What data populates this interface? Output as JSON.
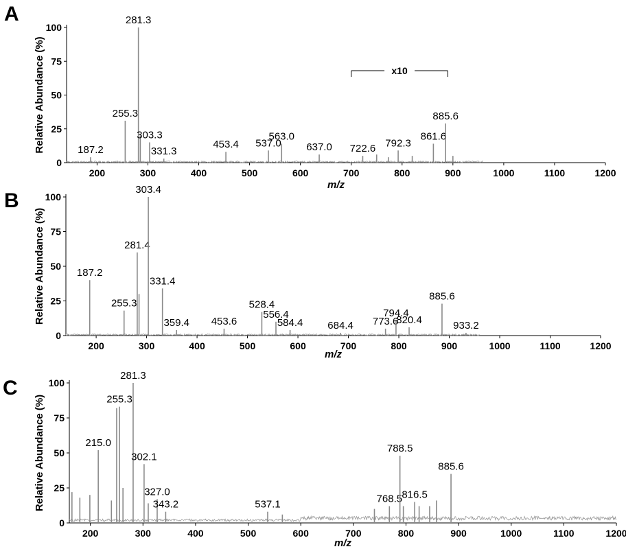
{
  "chart_data": [
    {
      "type": "line",
      "panel": "A",
      "ylabel": "Relative Abundance  (%)",
      "xlabel": "m/z",
      "xlim": [
        140,
        1200
      ],
      "ylim": [
        0,
        100
      ],
      "xticks": [
        200,
        300,
        400,
        500,
        600,
        700,
        800,
        900,
        1000,
        1100,
        1200
      ],
      "yticks": [
        0,
        25,
        50,
        75,
        100
      ],
      "annotation": {
        "text": "x10",
        "x_range": [
          700,
          890
        ],
        "y": 68
      },
      "baseline_end": 960,
      "noise": 1.2,
      "peaks": [
        {
          "x": 187.2,
          "y": 4,
          "label": "187.2"
        },
        {
          "x": 255.3,
          "y": 31,
          "label": "255.3"
        },
        {
          "x": 281.3,
          "y": 100,
          "label": "281.3"
        },
        {
          "x": 285,
          "y": 20,
          "label": ""
        },
        {
          "x": 303.3,
          "y": 15,
          "label": "303.3"
        },
        {
          "x": 331.3,
          "y": 3,
          "label": "331.3"
        },
        {
          "x": 453.4,
          "y": 8,
          "label": "453.4"
        },
        {
          "x": 537.0,
          "y": 9,
          "label": "537.0"
        },
        {
          "x": 563.0,
          "y": 14,
          "label": "563.0"
        },
        {
          "x": 637.0,
          "y": 6,
          "label": "637.0"
        },
        {
          "x": 722.6,
          "y": 5,
          "label": "722.6"
        },
        {
          "x": 750,
          "y": 6,
          "label": ""
        },
        {
          "x": 773,
          "y": 4,
          "label": ""
        },
        {
          "x": 792.3,
          "y": 9,
          "label": "792.3"
        },
        {
          "x": 820,
          "y": 5,
          "label": ""
        },
        {
          "x": 861.6,
          "y": 14,
          "label": "861.6"
        },
        {
          "x": 885.6,
          "y": 29,
          "label": "885.6"
        },
        {
          "x": 900,
          "y": 5,
          "label": ""
        }
      ]
    },
    {
      "type": "line",
      "panel": "B",
      "ylabel": "Relative Abundance  (%)",
      "xlabel": "m/z",
      "xlim": [
        140,
        1200
      ],
      "ylim": [
        0,
        100
      ],
      "xticks": [
        200,
        300,
        400,
        500,
        600,
        700,
        800,
        900,
        1000,
        1100,
        1200
      ],
      "yticks": [
        0,
        25,
        50,
        75,
        100
      ],
      "baseline_end": 960,
      "noise": 1.2,
      "peaks": [
        {
          "x": 187.2,
          "y": 40,
          "label": "187.2"
        },
        {
          "x": 255.3,
          "y": 18,
          "label": "255.3"
        },
        {
          "x": 281.4,
          "y": 60,
          "label": "281.4"
        },
        {
          "x": 285,
          "y": 30,
          "label": ""
        },
        {
          "x": 303.4,
          "y": 100,
          "label": "303.4"
        },
        {
          "x": 331.4,
          "y": 34,
          "label": "331.4"
        },
        {
          "x": 359.4,
          "y": 4,
          "label": "359.4"
        },
        {
          "x": 453.6,
          "y": 5,
          "label": "453.6"
        },
        {
          "x": 528.4,
          "y": 17,
          "label": "528.4"
        },
        {
          "x": 556.4,
          "y": 10,
          "label": "556.4"
        },
        {
          "x": 584.4,
          "y": 4,
          "label": "584.4"
        },
        {
          "x": 684.4,
          "y": 2,
          "label": "684.4"
        },
        {
          "x": 773.6,
          "y": 5,
          "label": "773.6"
        },
        {
          "x": 794.4,
          "y": 11,
          "label": "794.4"
        },
        {
          "x": 820.4,
          "y": 6,
          "label": "820.4"
        },
        {
          "x": 885.6,
          "y": 23,
          "label": "885.6"
        },
        {
          "x": 933.2,
          "y": 2,
          "label": "933.2"
        }
      ]
    },
    {
      "type": "line",
      "panel": "C",
      "ylabel": "Relative Abundance  (%)",
      "xlabel": "m/z",
      "xlim": [
        160,
        1200
      ],
      "ylim": [
        0,
        100
      ],
      "xticks": [
        200,
        300,
        400,
        500,
        600,
        700,
        800,
        900,
        1000,
        1100,
        1200
      ],
      "yticks": [
        0,
        25,
        50,
        75,
        100
      ],
      "baseline_end": 1200,
      "noise": 4,
      "peaks": [
        {
          "x": 165,
          "y": 22,
          "label": ""
        },
        {
          "x": 180,
          "y": 18,
          "label": ""
        },
        {
          "x": 199,
          "y": 20,
          "label": ""
        },
        {
          "x": 215.0,
          "y": 52,
          "label": "215.0"
        },
        {
          "x": 240,
          "y": 16,
          "label": ""
        },
        {
          "x": 250,
          "y": 82,
          "label": ""
        },
        {
          "x": 255.3,
          "y": 83,
          "label": "255.3"
        },
        {
          "x": 262,
          "y": 25,
          "label": ""
        },
        {
          "x": 281.3,
          "y": 100,
          "label": "281.3"
        },
        {
          "x": 302.1,
          "y": 42,
          "label": "302.1"
        },
        {
          "x": 310,
          "y": 14,
          "label": ""
        },
        {
          "x": 327.0,
          "y": 17,
          "label": "327.0"
        },
        {
          "x": 343.2,
          "y": 8,
          "label": "343.2"
        },
        {
          "x": 537.1,
          "y": 8,
          "label": "537.1"
        },
        {
          "x": 565,
          "y": 6,
          "label": ""
        },
        {
          "x": 740,
          "y": 10,
          "label": ""
        },
        {
          "x": 768.5,
          "y": 12,
          "label": "768.5"
        },
        {
          "x": 788.5,
          "y": 48,
          "label": "788.5"
        },
        {
          "x": 795,
          "y": 12,
          "label": ""
        },
        {
          "x": 816.5,
          "y": 15,
          "label": "816.5"
        },
        {
          "x": 825,
          "y": 12,
          "label": ""
        },
        {
          "x": 845,
          "y": 12,
          "label": ""
        },
        {
          "x": 858,
          "y": 16,
          "label": ""
        },
        {
          "x": 885.6,
          "y": 35,
          "label": "885.6"
        }
      ]
    }
  ]
}
